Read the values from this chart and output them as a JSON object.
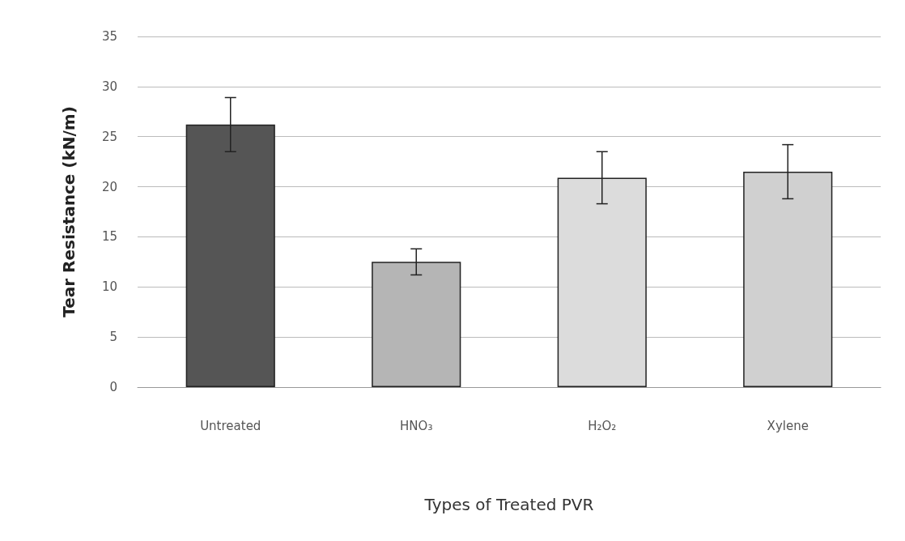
{
  "chart_data": {
    "type": "bar",
    "xlabel": "Types of Treated PVR",
    "ylabel": "Tear Resistance (kN/m)",
    "categories": [
      "Untreated",
      "HNO₃",
      "H₂O₂",
      "Xylene"
    ],
    "values": [
      26.2,
      12.5,
      20.9,
      21.5
    ],
    "errors": [
      2.7,
      1.3,
      2.6,
      2.7
    ],
    "colors": [
      "#555555",
      "#b5b5b5",
      "#dcdcdc",
      "#d0d0d0"
    ],
    "ylim": [
      0,
      35
    ],
    "yticks": [
      0,
      5,
      10,
      15,
      20,
      25,
      30,
      35
    ],
    "grid": "y"
  }
}
